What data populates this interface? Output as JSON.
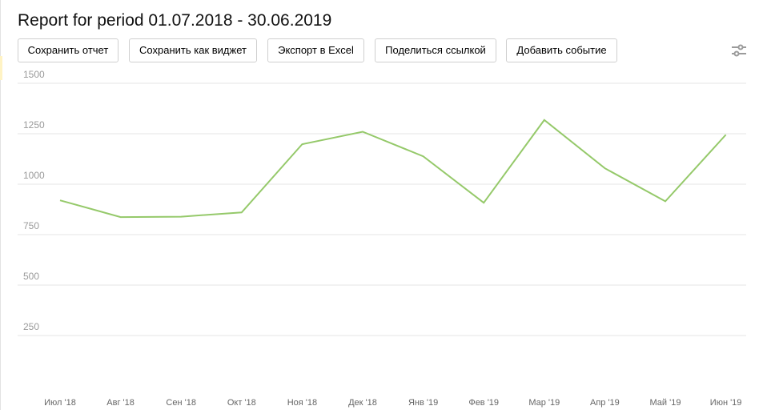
{
  "report": {
    "title": "Report for period 01.07.2018 - 30.06.2019"
  },
  "toolbar": {
    "buttons": [
      {
        "label": "Сохранить отчет"
      },
      {
        "label": "Сохранить как виджет"
      },
      {
        "label": "Экспорт в Excel"
      },
      {
        "label": "Поделиться ссылкой"
      },
      {
        "label": "Добавить событие"
      }
    ],
    "settings_icon": "sliders-icon"
  },
  "colors": {
    "line": "#95c96a",
    "grid": "#e6e6e6",
    "tick_text": "#666666",
    "y_tick_text": "#9a9a9a"
  },
  "chart_data": {
    "type": "line",
    "title": "",
    "xlabel": "",
    "ylabel": "",
    "categories": [
      "Июл '18",
      "Авг '18",
      "Сен '18",
      "Окт '18",
      "Ноя '18",
      "Дек '18",
      "Янв '19",
      "Фев '19",
      "Мар '19",
      "Апр '19",
      "Май '19",
      "Июн '19"
    ],
    "series": [
      {
        "values": [
          920,
          837,
          839,
          860,
          1198,
          1260,
          1138,
          908,
          1318,
          1079,
          915,
          1245
        ]
      }
    ],
    "ylim": [
      0,
      1500
    ],
    "yticks": [
      250,
      500,
      750,
      1000,
      1250,
      1500
    ],
    "grid": true,
    "legend": "none"
  }
}
